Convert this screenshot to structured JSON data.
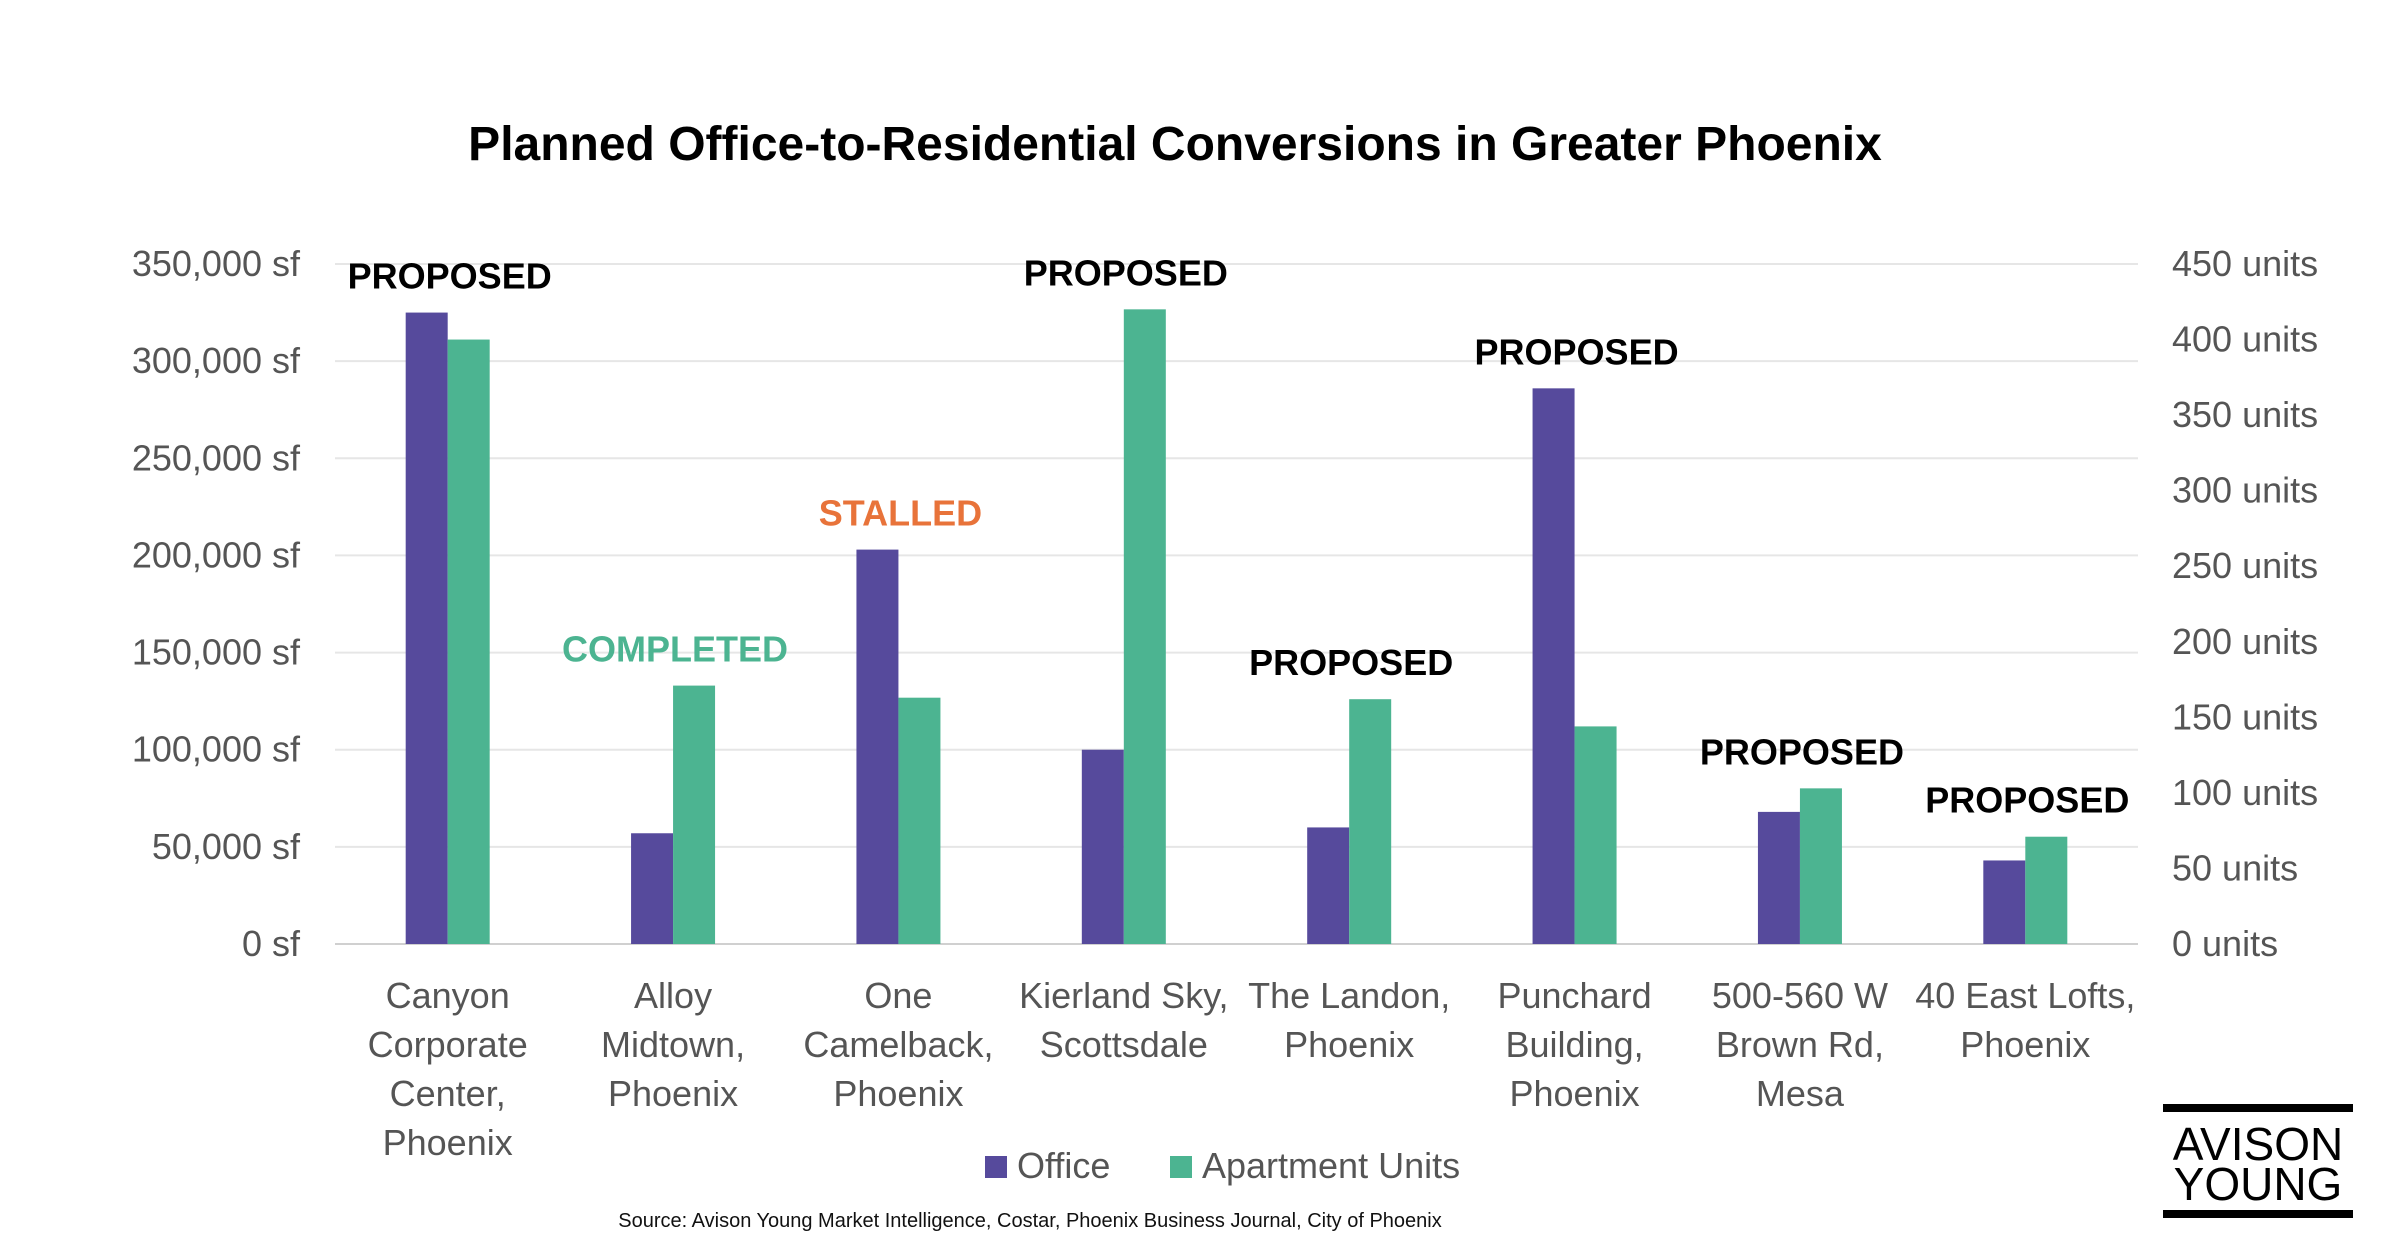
{
  "chart_data": {
    "type": "bar",
    "title": "Planned Office-to-Residential Conversions in Greater Phoenix",
    "categories": [
      [
        "Canyon",
        "Corporate",
        "Center,",
        "Phoenix"
      ],
      [
        "Alloy",
        "Midtown,",
        "Phoenix"
      ],
      [
        "One",
        "Camelback,",
        "Phoenix"
      ],
      [
        "Kierland Sky,",
        "Scottsdale"
      ],
      [
        "The Landon,",
        "Phoenix"
      ],
      [
        "Punchard",
        "Building,",
        "Phoenix"
      ],
      [
        "500-560 W",
        "Brown Rd,",
        "Mesa"
      ],
      [
        "40 East Lofts,",
        "Phoenix"
      ]
    ],
    "statuses": [
      "PROPOSED",
      "COMPLETED",
      "STALLED",
      "PROPOSED",
      "PROPOSED",
      "PROPOSED",
      "PROPOSED",
      "PROPOSED"
    ],
    "status_colors": {
      "PROPOSED": "#000000",
      "COMPLETED": "#4cb491",
      "STALLED": "#e8733a"
    },
    "series": [
      {
        "name": "Office",
        "axis": "left",
        "color": "#564a9c",
        "values": [
          325000,
          57000,
          203000,
          100000,
          60000,
          286000,
          68000,
          43000
        ]
      },
      {
        "name": "Apartment Units",
        "axis": "right",
        "color": "#4cb491",
        "values": [
          400,
          171,
          163,
          420,
          162,
          144,
          103,
          71
        ]
      }
    ],
    "y_left": {
      "ylim": [
        0,
        350000
      ],
      "ticks": [
        "0 sf",
        "50,000 sf",
        "100,000 sf",
        "150,000 sf",
        "200,000 sf",
        "250,000 sf",
        "300,000 sf",
        "350,000 sf"
      ]
    },
    "y_right": {
      "ylim": [
        0,
        450
      ],
      "ticks": [
        "0 units",
        "50 units",
        "100 units",
        "150 units",
        "200 units",
        "250 units",
        "300 units",
        "350 units",
        "400 units",
        "450 units"
      ]
    },
    "grid": true,
    "legend_position": "bottom"
  },
  "source": "Source: Avison Young Market Intelligence, Costar, Phoenix Business Journal, City of Phoenix",
  "logo": {
    "line1": "AVISON",
    "line2": "YOUNG"
  }
}
